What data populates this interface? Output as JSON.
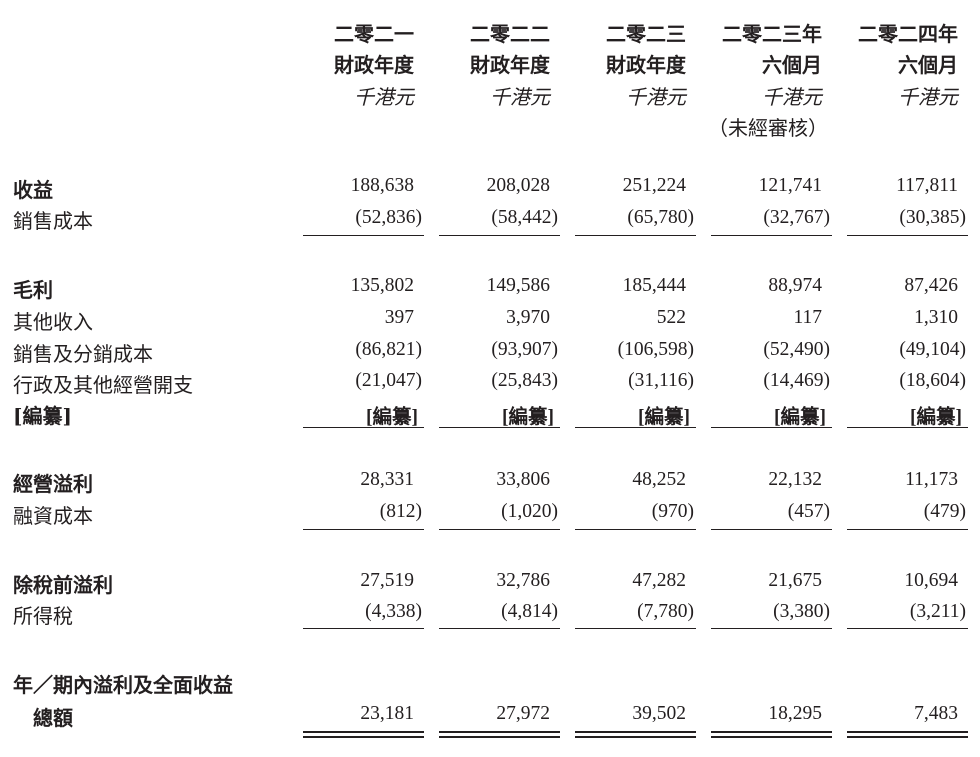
{
  "columns": [
    {
      "h1": "二零二一",
      "h2": "財政年度",
      "unit": "千港元",
      "note": ""
    },
    {
      "h1": "二零二二",
      "h2": "財政年度",
      "unit": "千港元",
      "note": ""
    },
    {
      "h1": "二零二三",
      "h2": "財政年度",
      "unit": "千港元",
      "note": ""
    },
    {
      "h1": "二零二三年",
      "h2": "六個月",
      "unit": "千港元",
      "note": "（未經審核）"
    },
    {
      "h1": "二零二四年",
      "h2": "六個月",
      "unit": "千港元",
      "note": ""
    }
  ],
  "rows": [
    {
      "label": "收益",
      "bold": true,
      "values": [
        "188,638",
        "208,028",
        "251,224",
        "121,741",
        "117,811"
      ]
    },
    {
      "label": "銷售成本",
      "bold": false,
      "values": [
        "(52,836)",
        "(58,442)",
        "(65,780)",
        "(32,767)",
        "(30,385)"
      ]
    },
    {
      "label": "毛利",
      "bold": true,
      "values": [
        "135,802",
        "149,586",
        "185,444",
        "88,974",
        "87,426"
      ]
    },
    {
      "label": "其他收入",
      "bold": false,
      "values": [
        "397",
        "3,970",
        "522",
        "117",
        "1,310"
      ]
    },
    {
      "label": "銷售及分銷成本",
      "bold": false,
      "values": [
        "(86,821)",
        "(93,907)",
        "(106,598)",
        "(52,490)",
        "(49,104)"
      ]
    },
    {
      "label": "行政及其他經營開支",
      "bold": false,
      "values": [
        "(21,047)",
        "(25,843)",
        "(31,116)",
        "(14,469)",
        "(18,604)"
      ]
    },
    {
      "label": "[編纂]",
      "bold": true,
      "values": [
        "[編纂]",
        "[編纂]",
        "[編纂]",
        "[編纂]",
        "[編纂]"
      ]
    },
    {
      "label": "經營溢利",
      "bold": true,
      "values": [
        "28,331",
        "33,806",
        "48,252",
        "22,132",
        "11,173"
      ]
    },
    {
      "label": "融資成本",
      "bold": false,
      "values": [
        "(812)",
        "(1,020)",
        "(970)",
        "(457)",
        "(479)"
      ]
    },
    {
      "label": "除稅前溢利",
      "bold": true,
      "values": [
        "27,519",
        "32,786",
        "47,282",
        "21,675",
        "10,694"
      ]
    },
    {
      "label": "所得稅",
      "bold": false,
      "values": [
        "(4,338)",
        "(4,814)",
        "(7,780)",
        "(3,380)",
        "(3,211)"
      ]
    },
    {
      "label": "年／期內溢利及全面收益",
      "bold": true,
      "values": [
        "",
        "",
        "",
        "",
        ""
      ]
    },
    {
      "label": "總額",
      "bold": true,
      "values": [
        "23,181",
        "27,972",
        "39,502",
        "18,295",
        "7,483"
      ]
    }
  ]
}
